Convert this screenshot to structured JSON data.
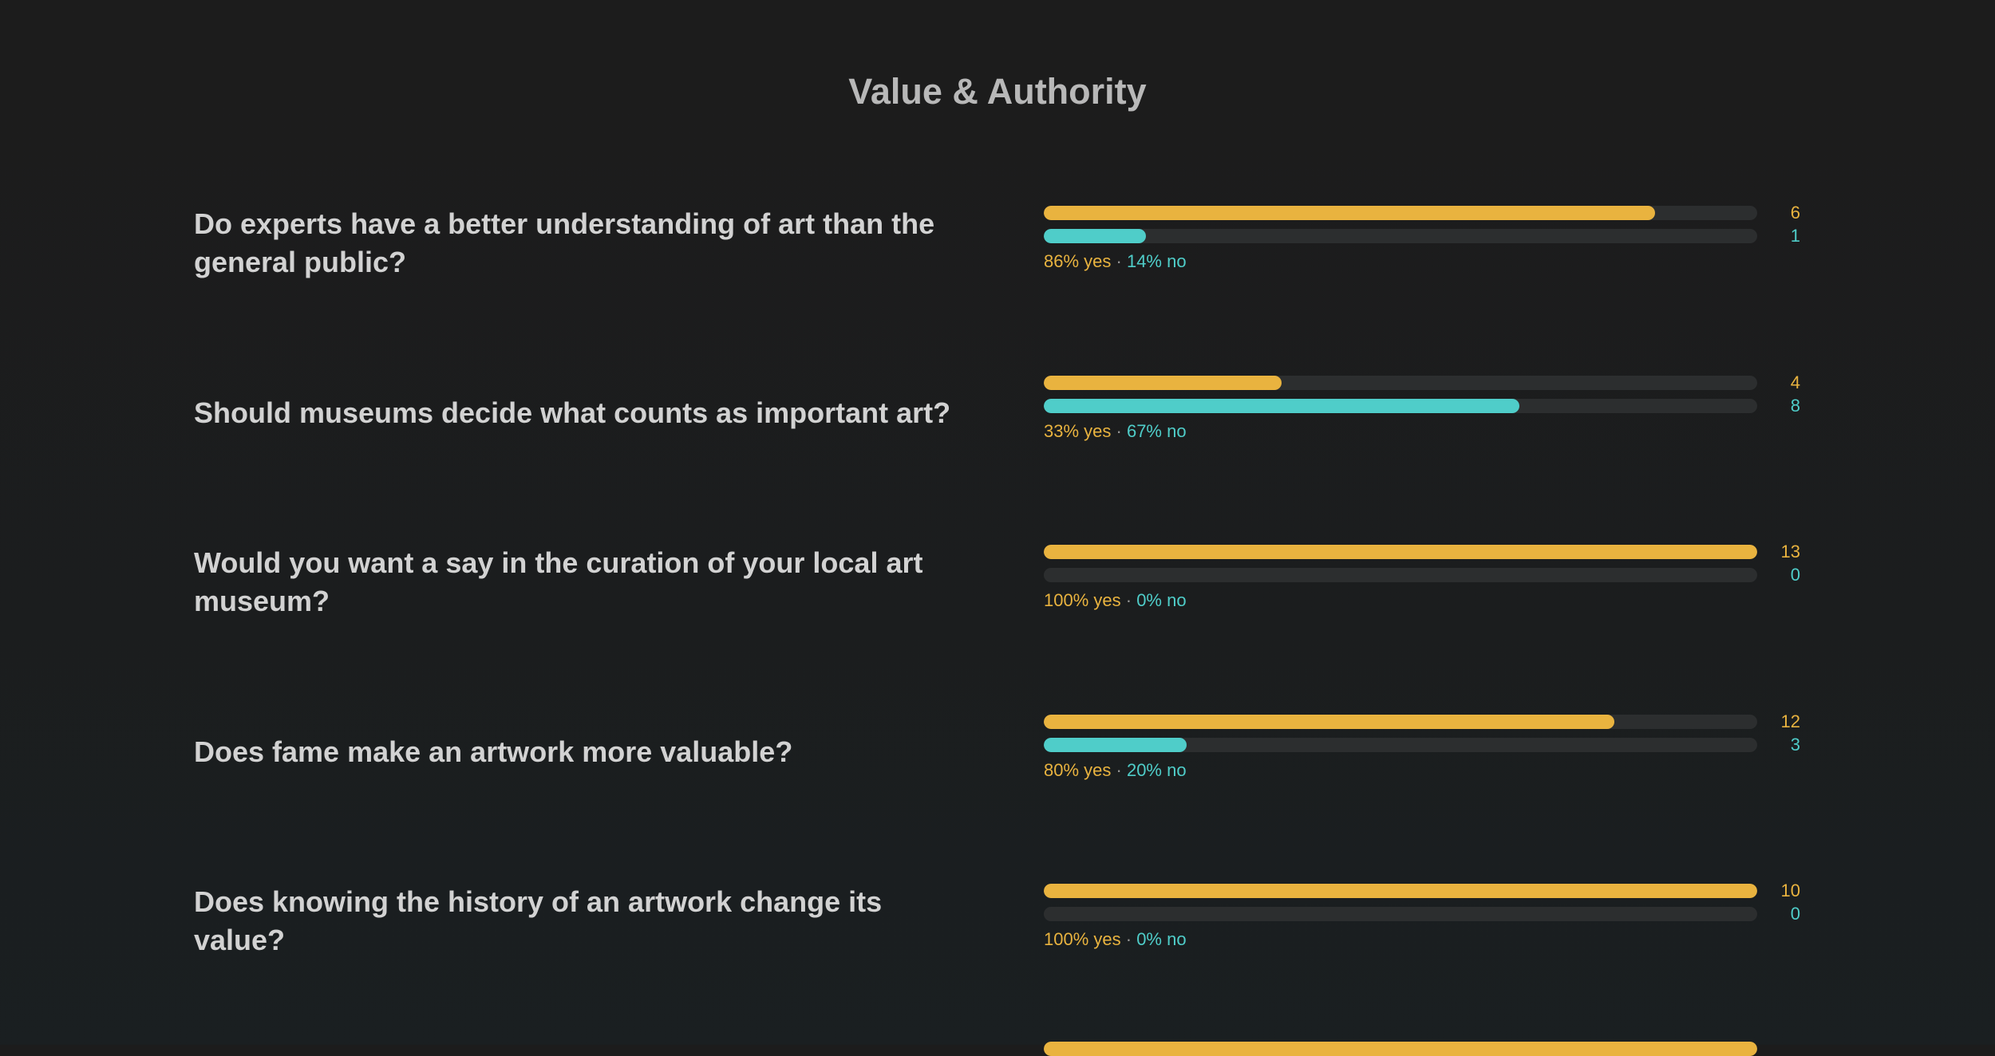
{
  "page": {
    "title": "Value & Authority"
  },
  "colors": {
    "background": "#1c1c1c",
    "yes": "#e9b33f",
    "no": "#4fcdc9",
    "track": "#2c2e2f",
    "text": "#d2d2d2"
  },
  "chart_data": {
    "type": "bar",
    "orientation": "horizontal",
    "series": [
      {
        "name": "yes",
        "values": [
          6,
          4,
          13,
          12,
          10
        ]
      },
      {
        "name": "no",
        "values": [
          1,
          8,
          0,
          3,
          0
        ]
      }
    ],
    "questions": [
      {
        "text": "Do experts have a better understanding of art than the general public?",
        "yes": 6,
        "no": 1,
        "yes_label": "86% yes",
        "separator": "·",
        "no_label": "14% no"
      },
      {
        "text": "Should museums decide what counts as important art?",
        "yes": 4,
        "no": 8,
        "yes_label": "33% yes",
        "separator": "·",
        "no_label": "67% no"
      },
      {
        "text": "Would you want a say in the curation of your local art museum?",
        "yes": 13,
        "no": 0,
        "yes_label": "100% yes",
        "separator": "·",
        "no_label": "0% no"
      },
      {
        "text": "Does fame make an artwork more valuable?",
        "yes": 12,
        "no": 3,
        "yes_label": "80% yes",
        "separator": "·",
        "no_label": "20% no"
      },
      {
        "text": "Does knowing the history of an artwork change its value?",
        "yes": 10,
        "no": 0,
        "yes_label": "100% yes",
        "separator": "·",
        "no_label": "0% no"
      }
    ],
    "partial_next_row": {
      "yes_fraction": 1.0
    }
  }
}
